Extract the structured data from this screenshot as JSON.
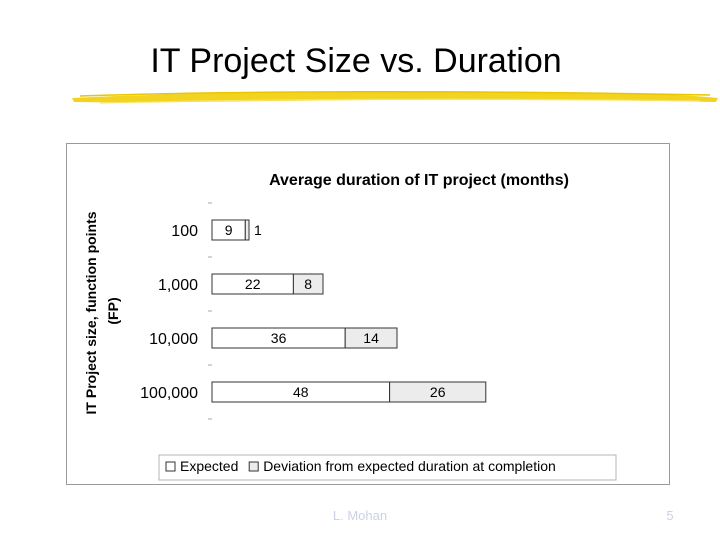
{
  "slide": {
    "title": "IT Project Size vs. Duration",
    "footer_author": "L. Mohan",
    "page_number": "5",
    "accent_color": "#f2d420"
  },
  "chart_data": {
    "type": "bar",
    "orientation": "horizontal",
    "stacked": true,
    "title": "Average duration of IT project (months)",
    "xlabel": "",
    "ylabel": "IT Project size, function points (FP)",
    "categories": [
      "100",
      "1,000",
      "10,000",
      "100,000"
    ],
    "series": [
      {
        "name": "Expected",
        "values": [
          9,
          22,
          36,
          48
        ],
        "color": "#ffffff"
      },
      {
        "name": "Deviation from expected duration at completion",
        "values": [
          1,
          8,
          14,
          26
        ],
        "color": "#ececec"
      }
    ],
    "xlim": [
      0,
      80
    ],
    "grid": false,
    "legend_position": "bottom"
  }
}
